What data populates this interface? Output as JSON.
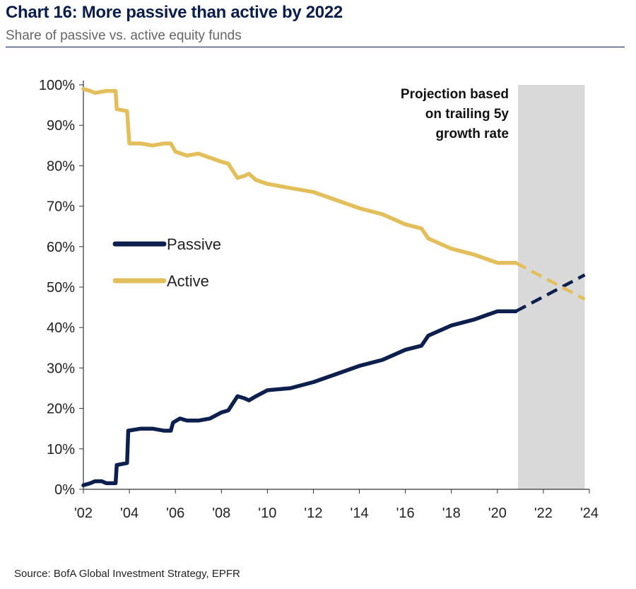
{
  "header": {
    "title": "Chart 16: More passive than active by 2022",
    "subtitle": "Share of passive vs. active equity funds"
  },
  "footer": {
    "source": "Source: BofA Global Investment Strategy, EPFR"
  },
  "chart_data": {
    "type": "line",
    "ylim": [
      0,
      100
    ],
    "xlim": [
      2002,
      2024
    ],
    "y_ticks": [
      0,
      10,
      20,
      30,
      40,
      50,
      60,
      70,
      80,
      90,
      100
    ],
    "y_tick_labels": [
      "0%",
      "10%",
      "20%",
      "30%",
      "40%",
      "50%",
      "60%",
      "70%",
      "80%",
      "90%",
      "100%"
    ],
    "x_ticks": [
      2002,
      2004,
      2006,
      2008,
      2010,
      2012,
      2014,
      2016,
      2018,
      2020,
      2022,
      2024
    ],
    "x_tick_labels": [
      "'02",
      "'04",
      "'06",
      "'08",
      "'10",
      "'12",
      "'14",
      "'16",
      "'18",
      "'20",
      "'22",
      "'24"
    ],
    "legend": {
      "position": "middle-left"
    },
    "annotation": {
      "lines": [
        "Projection based",
        "on trailing 5y",
        "growth rate"
      ],
      "x_range": [
        2020.9,
        2023.8
      ]
    },
    "series": [
      {
        "name": "Passive",
        "color": "#0d1f4d",
        "actual": [
          [
            2002.0,
            1.0
          ],
          [
            2002.3,
            1.5
          ],
          [
            2002.5,
            2.0
          ],
          [
            2002.8,
            2.0
          ],
          [
            2003.0,
            1.5
          ],
          [
            2003.4,
            1.5
          ],
          [
            2003.45,
            6.0
          ],
          [
            2003.9,
            6.5
          ],
          [
            2003.95,
            14.5
          ],
          [
            2004.5,
            15.0
          ],
          [
            2005.0,
            15.0
          ],
          [
            2005.5,
            14.5
          ],
          [
            2005.8,
            14.5
          ],
          [
            2005.9,
            16.5
          ],
          [
            2006.2,
            17.5
          ],
          [
            2006.5,
            17.0
          ],
          [
            2007.0,
            17.0
          ],
          [
            2007.5,
            17.5
          ],
          [
            2008.0,
            19.0
          ],
          [
            2008.3,
            19.5
          ],
          [
            2008.7,
            23.0
          ],
          [
            2009.0,
            22.5
          ],
          [
            2009.2,
            22.0
          ],
          [
            2009.5,
            23.0
          ],
          [
            2010.0,
            24.5
          ],
          [
            2011.0,
            25.0
          ],
          [
            2012.0,
            26.5
          ],
          [
            2013.0,
            28.5
          ],
          [
            2014.0,
            30.5
          ],
          [
            2015.0,
            32.0
          ],
          [
            2016.0,
            34.5
          ],
          [
            2016.7,
            35.5
          ],
          [
            2017.0,
            38.0
          ],
          [
            2018.0,
            40.5
          ],
          [
            2019.0,
            42.0
          ],
          [
            2019.5,
            43.0
          ],
          [
            2020.0,
            44.0
          ],
          [
            2020.5,
            44.0
          ],
          [
            2020.8,
            44.0
          ]
        ],
        "projection": [
          [
            2020.8,
            44.0
          ],
          [
            2023.8,
            53.0
          ]
        ]
      },
      {
        "name": "Active",
        "color": "#e2bf5a",
        "actual": [
          [
            2002.0,
            99.0
          ],
          [
            2002.3,
            98.5
          ],
          [
            2002.5,
            98.0
          ],
          [
            2003.0,
            98.5
          ],
          [
            2003.4,
            98.5
          ],
          [
            2003.45,
            94.0
          ],
          [
            2003.9,
            93.5
          ],
          [
            2004.0,
            85.5
          ],
          [
            2004.5,
            85.5
          ],
          [
            2005.0,
            85.0
          ],
          [
            2005.5,
            85.5
          ],
          [
            2005.8,
            85.5
          ],
          [
            2006.0,
            83.5
          ],
          [
            2006.5,
            82.5
          ],
          [
            2007.0,
            83.0
          ],
          [
            2007.5,
            82.0
          ],
          [
            2008.0,
            81.0
          ],
          [
            2008.3,
            80.5
          ],
          [
            2008.7,
            77.0
          ],
          [
            2009.0,
            77.5
          ],
          [
            2009.2,
            78.0
          ],
          [
            2009.5,
            76.5
          ],
          [
            2010.0,
            75.5
          ],
          [
            2011.0,
            74.5
          ],
          [
            2012.0,
            73.5
          ],
          [
            2013.0,
            71.5
          ],
          [
            2014.0,
            69.5
          ],
          [
            2015.0,
            68.0
          ],
          [
            2016.0,
            65.5
          ],
          [
            2016.7,
            64.5
          ],
          [
            2017.0,
            62.0
          ],
          [
            2018.0,
            59.5
          ],
          [
            2019.0,
            58.0
          ],
          [
            2019.5,
            57.0
          ],
          [
            2020.0,
            56.0
          ],
          [
            2020.5,
            56.0
          ],
          [
            2020.8,
            56.0
          ]
        ],
        "projection": [
          [
            2020.8,
            56.0
          ],
          [
            2023.8,
            47.0
          ]
        ]
      }
    ]
  }
}
